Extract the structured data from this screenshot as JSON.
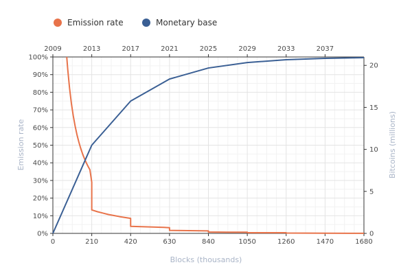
{
  "chart_data": {
    "type": "line",
    "xlabel": "Blocks (thousands)",
    "ylabel_left": "Emission rate",
    "ylabel_right": "Bitcoins (millions)",
    "x_range": [
      0,
      1680
    ],
    "x_ticks": [
      "0",
      "210",
      "420",
      "630",
      "840",
      "1050",
      "1260",
      "1470",
      "1680"
    ],
    "x_tick_values": [
      0,
      210,
      420,
      630,
      840,
      1050,
      1260,
      1470,
      1680
    ],
    "top_axis_ticks": [
      "2009",
      "2013",
      "2017",
      "2021",
      "2025",
      "2029",
      "2033",
      "2037"
    ],
    "top_axis_tick_values": [
      0,
      210,
      420,
      630,
      840,
      1050,
      1260,
      1470
    ],
    "y_left_range": [
      0,
      100
    ],
    "y_left_ticks": [
      "0%",
      "10%",
      "20%",
      "30%",
      "40%",
      "50%",
      "60%",
      "70%",
      "80%",
      "90%",
      "100%"
    ],
    "y_left_tick_values": [
      0,
      10,
      20,
      30,
      40,
      50,
      60,
      70,
      80,
      90,
      100
    ],
    "y_right_range": [
      0,
      21
    ],
    "y_right_ticks": [
      "0",
      "5",
      "10",
      "15",
      "20"
    ],
    "y_right_tick_values": [
      0,
      5,
      10,
      15,
      20
    ],
    "grid": true,
    "legend_position": "top-left",
    "series": [
      {
        "name": "Emission rate",
        "color": "#e8734a",
        "axis": "left",
        "x": [
          75,
          80,
          90,
          100,
          110,
          120,
          130,
          140,
          150,
          160,
          170,
          180,
          190,
          200,
          210,
          210,
          240,
          270,
          300,
          330,
          360,
          390,
          420,
          420,
          480,
          540,
          600,
          630,
          630,
          700,
          770,
          840,
          840,
          945,
          1050,
          1050,
          1155,
          1260,
          1260,
          1470,
          1680
        ],
        "values": [
          100,
          93.3,
          82.4,
          73.7,
          66.7,
          60.9,
          56,
          51.9,
          48.3,
          45.2,
          42.5,
          40.1,
          38,
          36.1,
          29,
          13.3,
          12.3,
          11.5,
          10.7,
          10.1,
          9.5,
          9,
          8.5,
          4,
          3.8,
          3.6,
          3.4,
          3.2,
          1.7,
          1.6,
          1.5,
          1.4,
          0.8,
          0.7,
          0.7,
          0.4,
          0.4,
          0.4,
          0.2,
          0.1,
          0.05
        ]
      },
      {
        "name": "Monetary base",
        "color": "#3a5f94",
        "axis": "right",
        "x": [
          0,
          210,
          420,
          630,
          840,
          1050,
          1260,
          1470,
          1680
        ],
        "values": [
          0,
          10.5,
          15.75,
          18.375,
          19.6875,
          20.34,
          20.67,
          20.84,
          20.92
        ]
      }
    ]
  }
}
